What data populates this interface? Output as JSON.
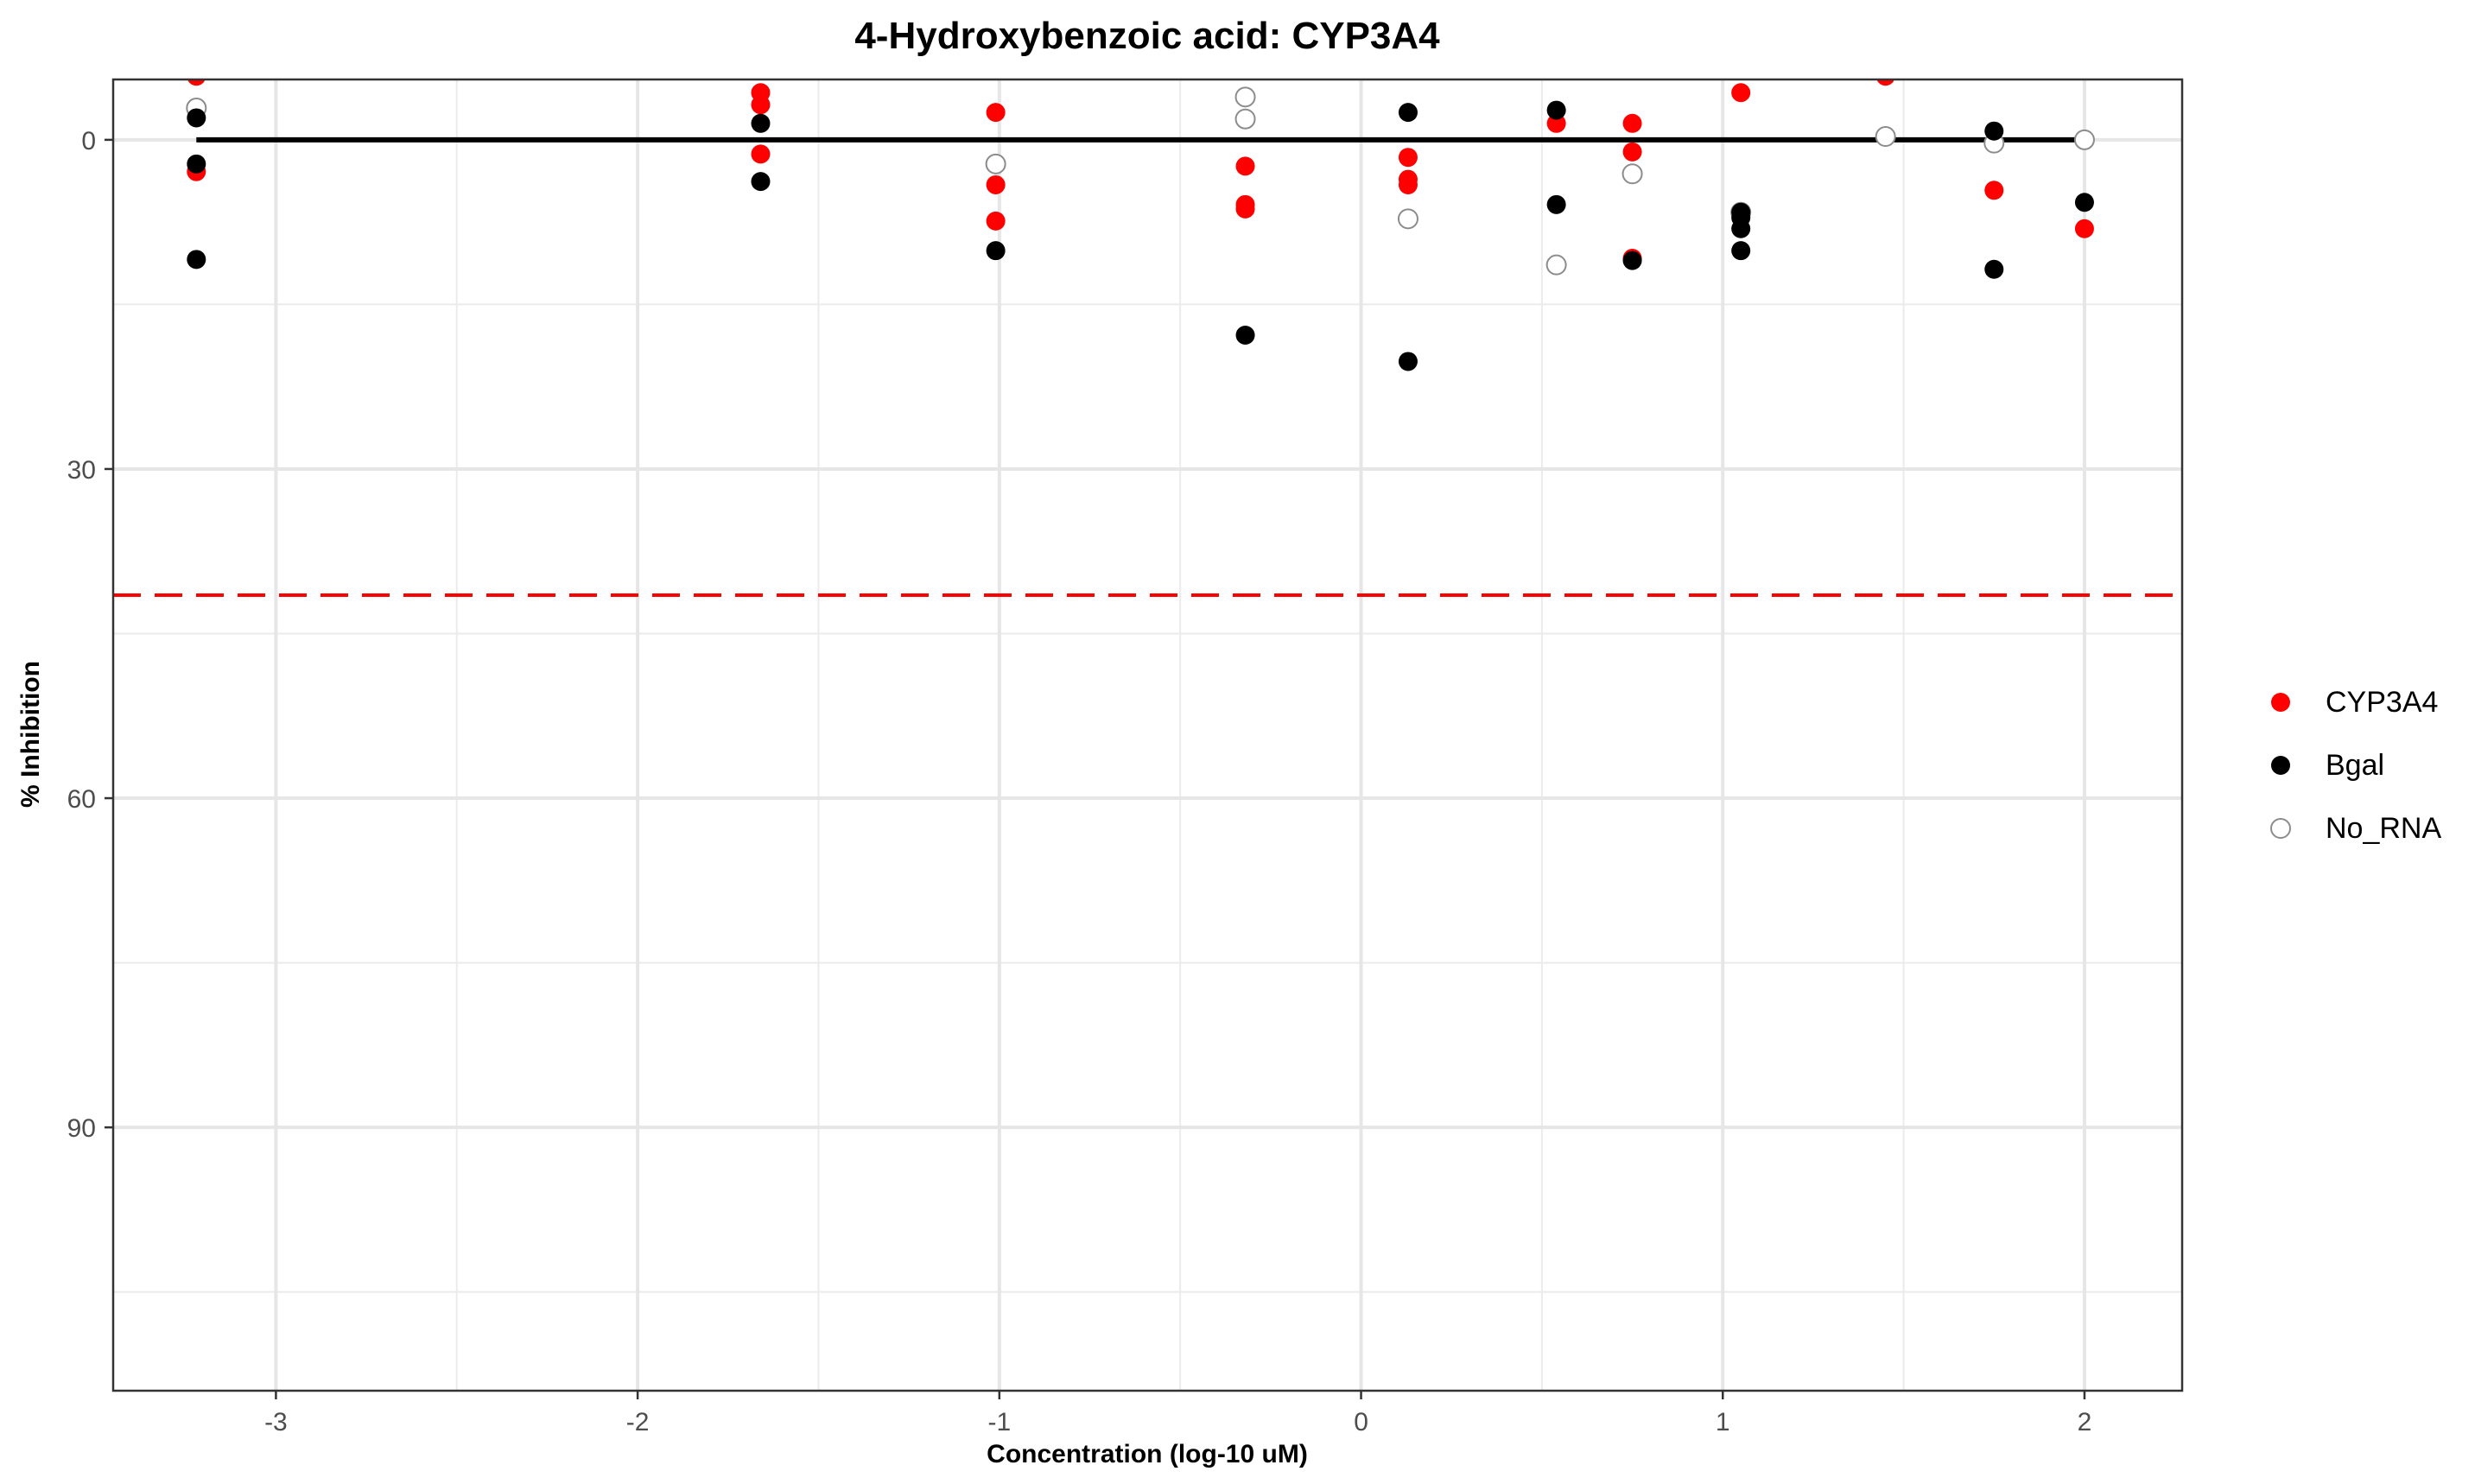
{
  "chart_data": {
    "type": "scatter",
    "title": "4-Hydroxybenzoic acid: CYP3A4",
    "xlabel": "Concentration (log-10 uM)",
    "ylabel": "% Inhibition",
    "xlim": [
      -3.45,
      2.27
    ],
    "ylim": [
      -5.5,
      114
    ],
    "y_reversed": true,
    "grid": true,
    "x_ticks": [
      -3,
      -2,
      -1,
      0,
      1,
      2
    ],
    "x_tick_labels": [
      "-3",
      "-2",
      "-1",
      "0",
      "1",
      "2"
    ],
    "y_ticks": [
      0,
      30,
      60,
      90
    ],
    "y_tick_labels": [
      "0",
      "30",
      "60",
      "90"
    ],
    "x_minor_ticks": [
      -2.5,
      -1.5,
      -0.5,
      0.5,
      1.5
    ],
    "y_minor_ticks": [
      15,
      45,
      75,
      105
    ],
    "threshold_line": {
      "y": 41.5,
      "color": "#ff0000",
      "style": "dashed"
    },
    "fit_line": {
      "x_range": [
        -3.22,
        2.0
      ],
      "y": 0,
      "color": "#000000"
    },
    "legend_position": "right",
    "series": [
      {
        "name": "CYP3A4",
        "color": "#ff0000",
        "marker": "filled-circle",
        "points": [
          [
            -3.22,
            -5.8
          ],
          [
            -3.22,
            2.9
          ],
          [
            -1.66,
            -4.3
          ],
          [
            -1.66,
            -3.2
          ],
          [
            -1.66,
            1.3
          ],
          [
            -1.01,
            -2.5
          ],
          [
            -1.01,
            4.1
          ],
          [
            -1.01,
            7.4
          ],
          [
            -0.32,
            2.4
          ],
          [
            -0.32,
            5.9
          ],
          [
            -0.32,
            6.3
          ],
          [
            0.13,
            1.6
          ],
          [
            0.13,
            3.6
          ],
          [
            0.13,
            4.1
          ],
          [
            0.54,
            -1.5
          ],
          [
            0.75,
            -1.5
          ],
          [
            0.75,
            1.1
          ],
          [
            0.75,
            10.8
          ],
          [
            1.05,
            -4.3
          ],
          [
            1.45,
            -5.8
          ],
          [
            1.75,
            4.6
          ],
          [
            2.0,
            8.1
          ]
        ]
      },
      {
        "name": "Bgal",
        "color": "#000000",
        "marker": "filled-circle",
        "points": [
          [
            -3.22,
            -2.0
          ],
          [
            -3.22,
            2.2
          ],
          [
            -3.22,
            10.9
          ],
          [
            -1.66,
            -1.5
          ],
          [
            -1.66,
            3.8
          ],
          [
            -1.01,
            10.1
          ],
          [
            -0.32,
            17.8
          ],
          [
            0.13,
            -2.5
          ],
          [
            0.13,
            20.2
          ],
          [
            0.54,
            -2.7
          ],
          [
            0.54,
            5.9
          ],
          [
            0.75,
            11.0
          ],
          [
            1.05,
            6.6
          ],
          [
            1.05,
            7.1
          ],
          [
            1.05,
            8.1
          ],
          [
            1.05,
            10.1
          ],
          [
            1.75,
            -0.8
          ],
          [
            1.75,
            11.8
          ],
          [
            2.0,
            5.7
          ]
        ]
      },
      {
        "name": "No_RNA",
        "color": "#8c8c8c",
        "marker": "open-circle",
        "points": [
          [
            -3.22,
            -2.9
          ],
          [
            -1.01,
            2.2
          ],
          [
            -0.32,
            -3.9
          ],
          [
            -0.32,
            -1.9
          ],
          [
            0.13,
            7.2
          ],
          [
            0.54,
            11.4
          ],
          [
            0.75,
            3.1
          ],
          [
            1.05,
            6.6
          ],
          [
            1.45,
            -0.3
          ],
          [
            1.75,
            0.3
          ],
          [
            2.0,
            0.0
          ]
        ]
      }
    ]
  }
}
